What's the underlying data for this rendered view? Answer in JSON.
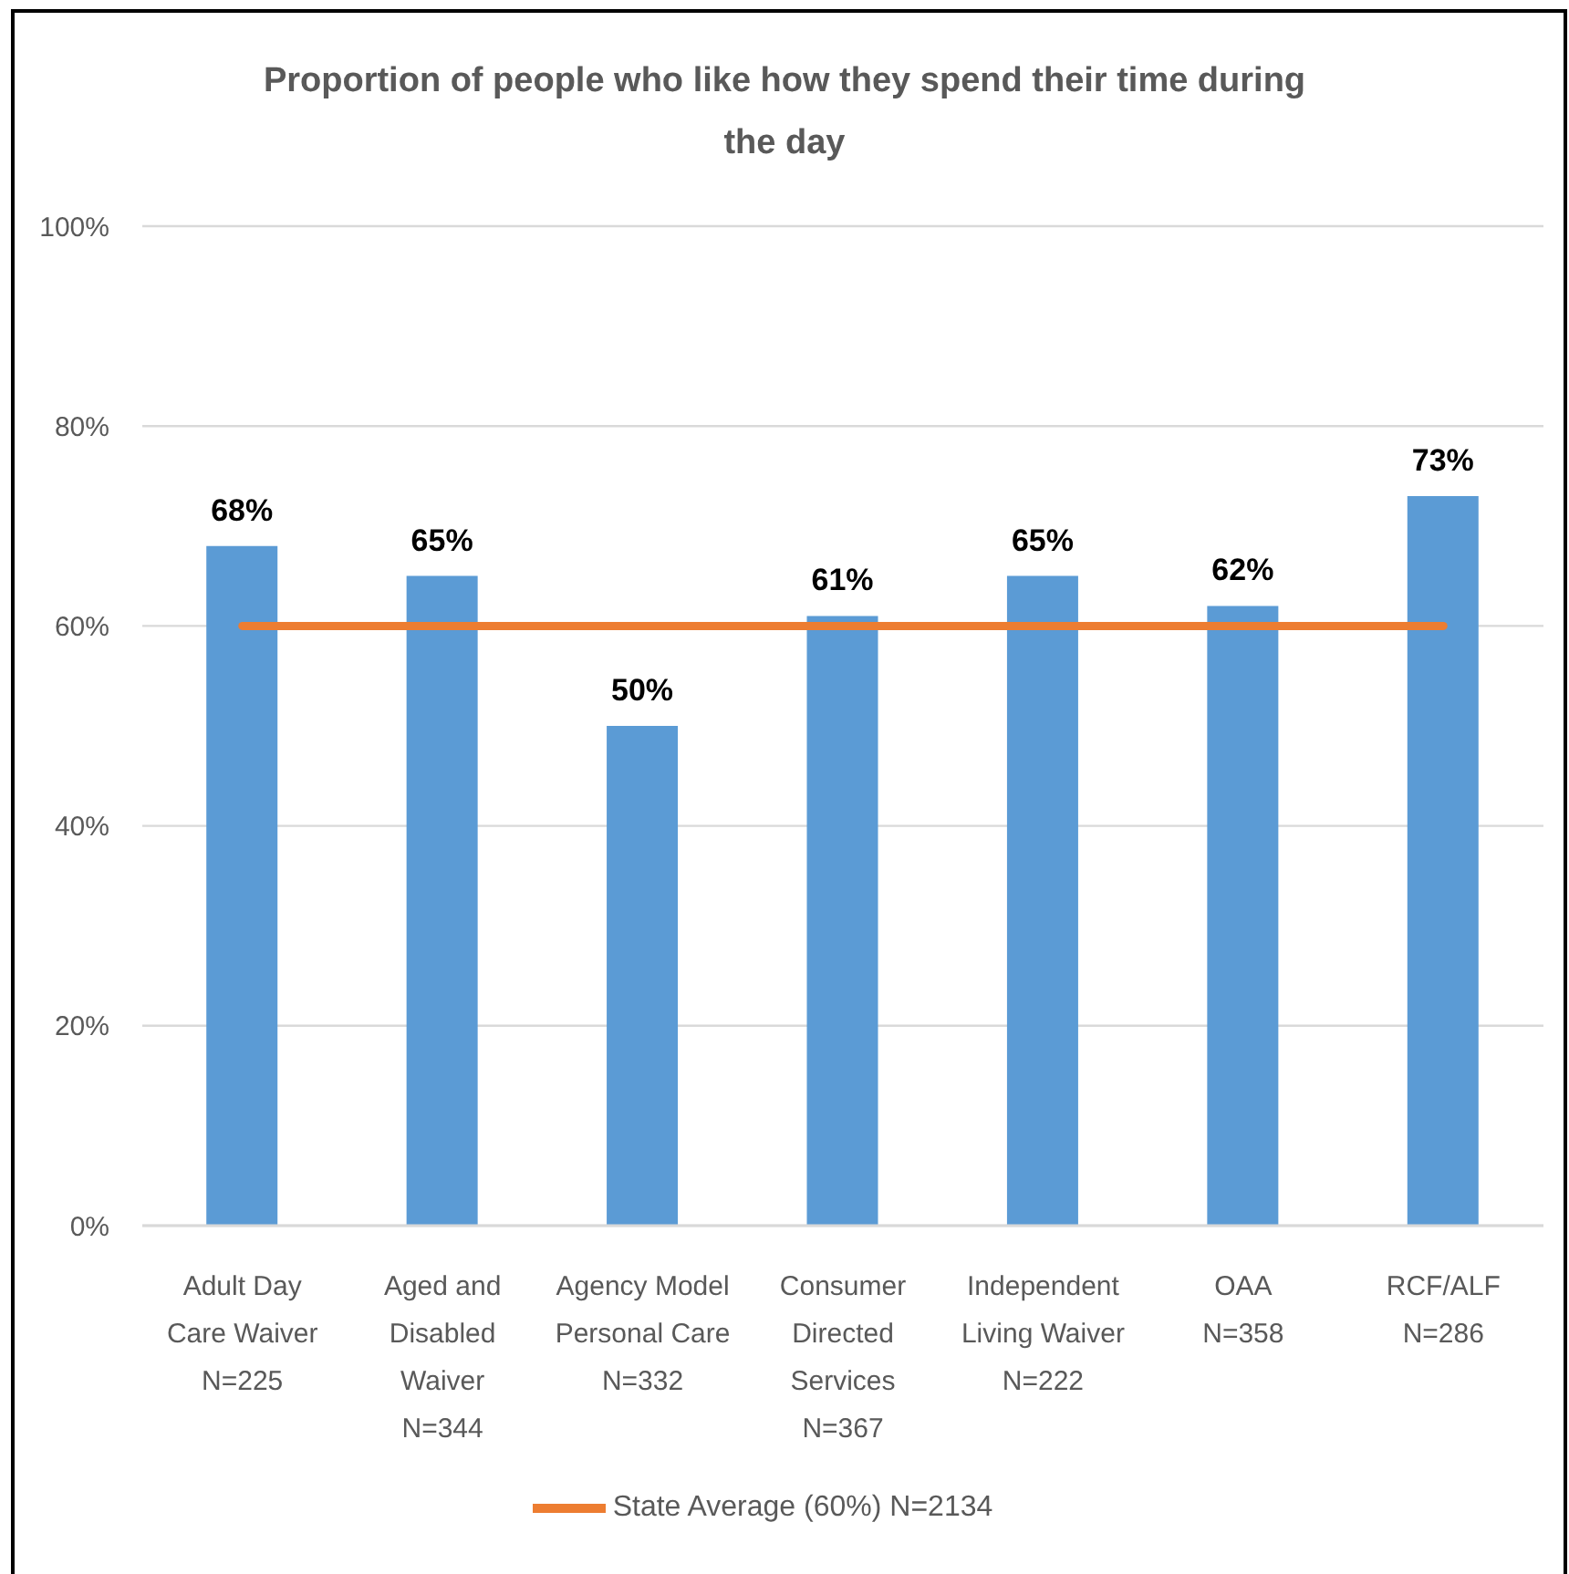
{
  "chart_data": {
    "type": "bar",
    "title": "Proportion of people who like how they spend their time during the day",
    "categories": [
      "Adult Day Care Waiver\nN=225",
      "Aged and Disabled Waiver\nN=344",
      "Agency Model Personal Care\nN=332",
      "Consumer Directed Services\nN=367",
      "Independent Living Waiver\nN=222",
      "OAA\nN=358",
      "RCF/ALF\nN=286"
    ],
    "series": [
      {
        "color": "#5b9bd5",
        "values": [
          68,
          65,
          50,
          61,
          65,
          62,
          73
        ],
        "value_labels": [
          "68%",
          "65%",
          "50%",
          "61%",
          "65%",
          "62%",
          "73%"
        ]
      },
      {
        "type": "line",
        "name": "State Average (60%) N=2134",
        "color": "#ed7d31",
        "values": [
          60,
          60,
          60,
          60,
          60,
          60,
          60
        ]
      }
    ],
    "ylim": [
      0,
      100
    ],
    "yticks": [
      {
        "value": 0,
        "label": "0%"
      },
      {
        "value": 20,
        "label": "20%"
      },
      {
        "value": 40,
        "label": "40%"
      },
      {
        "value": 60,
        "label": "60%"
      },
      {
        "value": 80,
        "label": "80%"
      },
      {
        "value": 100,
        "label": "100%"
      }
    ],
    "grid": "y",
    "legend": "bottom"
  }
}
